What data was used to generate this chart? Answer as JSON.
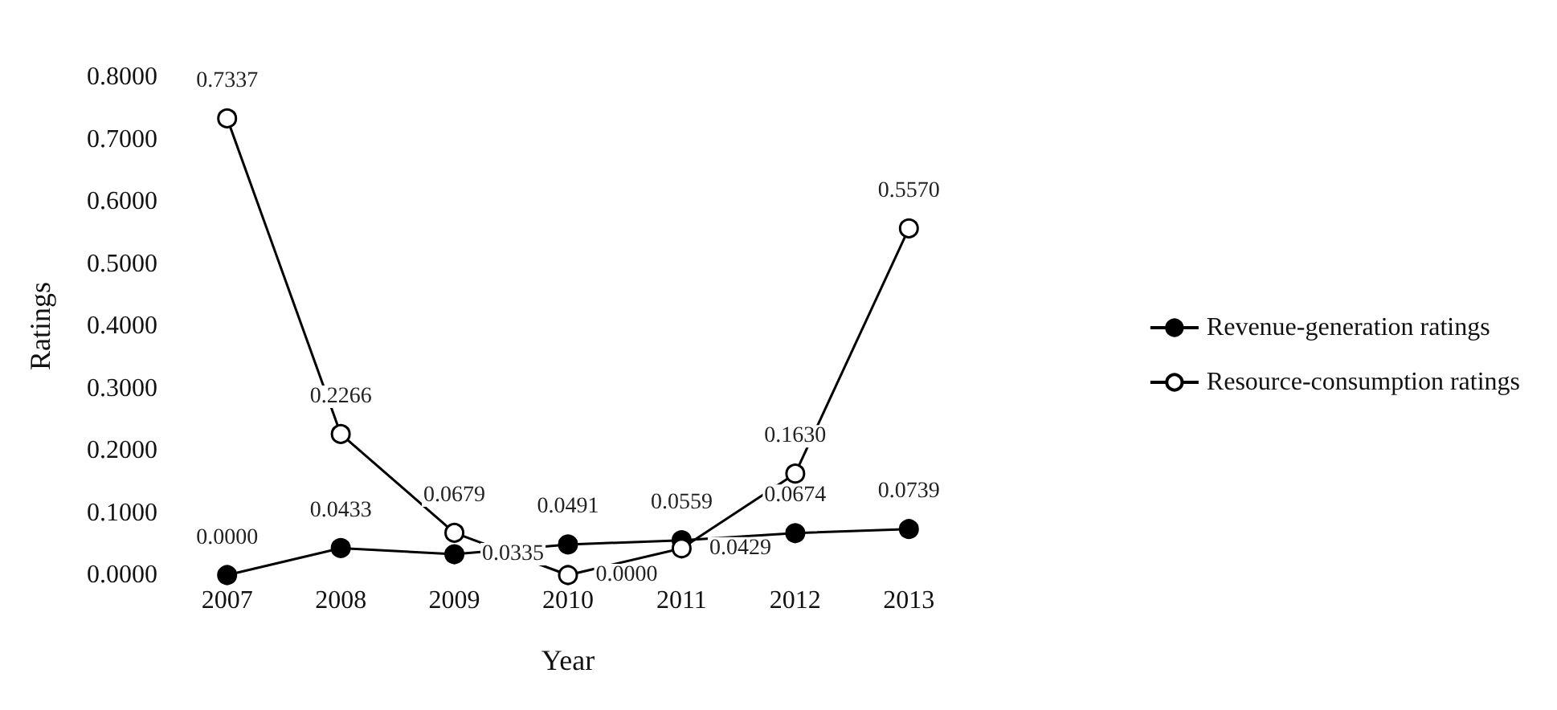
{
  "chart_data": {
    "type": "line",
    "xlabel": "Year",
    "ylabel": "Ratings",
    "categories": [
      "2007",
      "2008",
      "2009",
      "2010",
      "2011",
      "2012",
      "2013"
    ],
    "series": [
      {
        "name": "Revenue-generation ratings",
        "color": "#000000",
        "values": [
          0,
          0.0433,
          0.0335,
          0.0491,
          0.0559,
          0.0674,
          0.0739
        ],
        "value_labels": [
          "0.0000",
          "0.0433",
          "0.0335",
          "0.0491",
          "0.0559",
          "0.0674",
          "0.0739"
        ]
      },
      {
        "name": "Resource-consumption ratings",
        "color": "#ffffff",
        "values": [
          0.7337,
          0.2266,
          0.0679,
          0,
          0.0429,
          0.163,
          0.557
        ],
        "value_labels": [
          "0.7337",
          "0.2266",
          "0.0679",
          "0.0000",
          "0.0429",
          "0.1630",
          "0.5570"
        ]
      }
    ],
    "ylim": [
      0,
      0.8
    ],
    "yticks": [
      {
        "value": 0,
        "label": "0.0000"
      },
      {
        "value": 0.1,
        "label": "0.1000"
      },
      {
        "value": 0.2,
        "label": "0.2000"
      },
      {
        "value": 0.3,
        "label": "0.3000"
      },
      {
        "value": 0.4,
        "label": "0.4000"
      },
      {
        "value": 0.5,
        "label": "0.5000"
      },
      {
        "value": 0.6,
        "label": "0.6000"
      },
      {
        "value": 0.7,
        "label": "0.7000"
      },
      {
        "value": 0.8,
        "label": "0.8000"
      }
    ],
    "legend": "right",
    "marker": "circle",
    "grid": false
  }
}
